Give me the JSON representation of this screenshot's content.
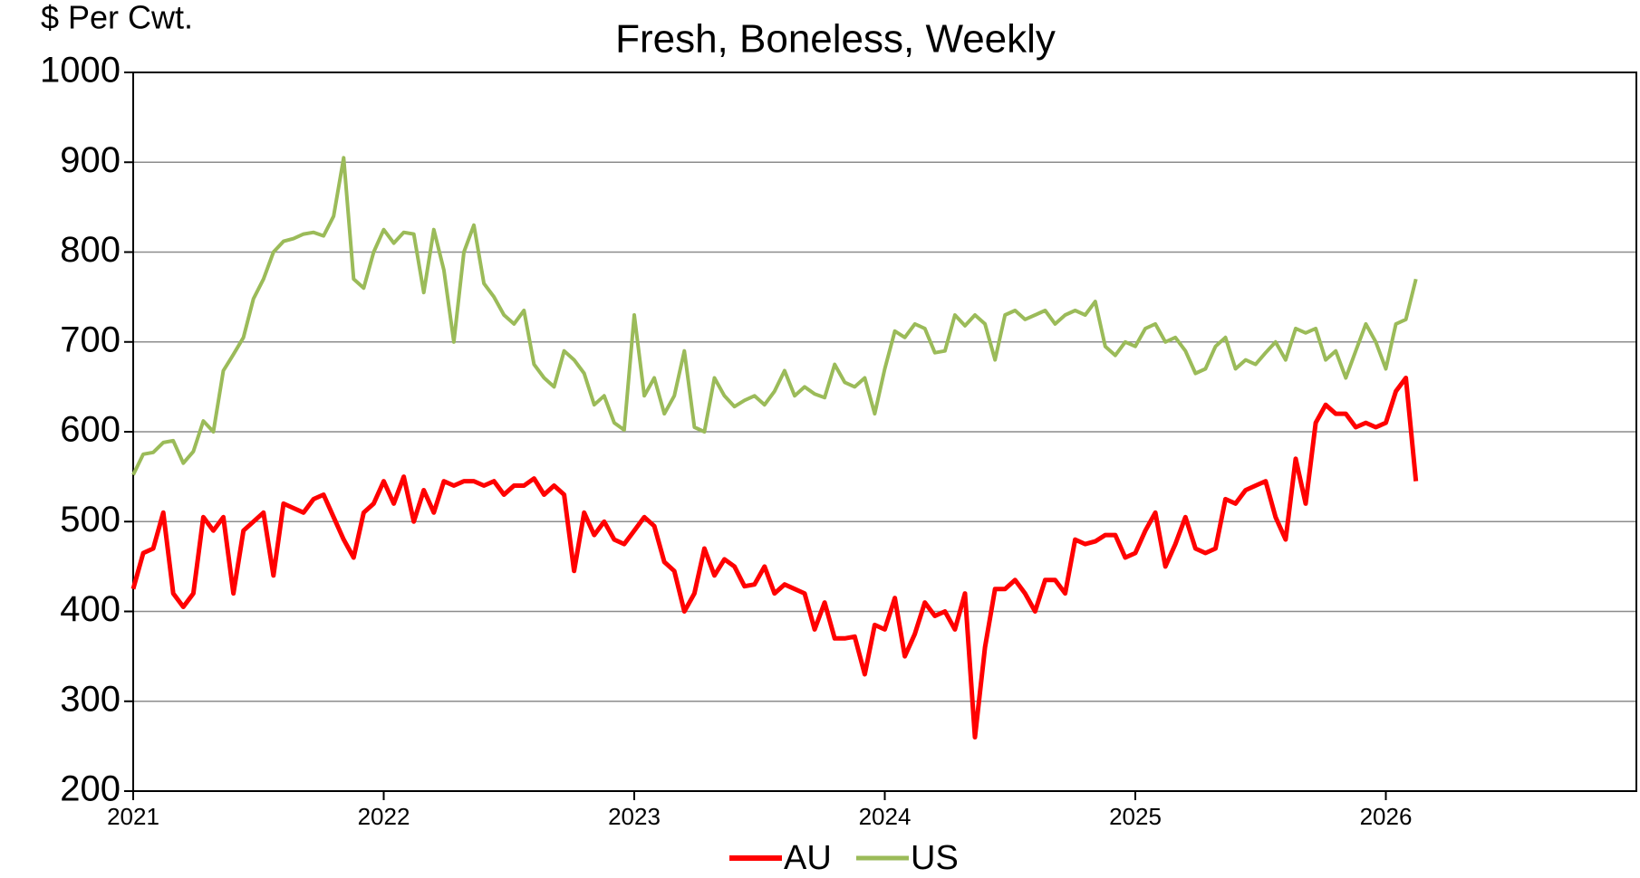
{
  "chart_data": {
    "type": "line",
    "title": "Fresh, Boneless, Weekly",
    "y_label": "$ Per Cwt.",
    "x": [
      2021.0,
      2021.04,
      2021.08,
      2021.12,
      2021.16,
      2021.2,
      2021.24,
      2021.28,
      2021.32,
      2021.36,
      2021.4,
      2021.44,
      2021.48,
      2021.52,
      2021.56,
      2021.6,
      2021.64,
      2021.68,
      2021.72,
      2021.76,
      2021.8,
      2021.84,
      2021.88,
      2021.92,
      2021.96,
      2022.0,
      2022.04,
      2022.08,
      2022.12,
      2022.16,
      2022.2,
      2022.24,
      2022.28,
      2022.32,
      2022.36,
      2022.4,
      2022.44,
      2022.48,
      2022.52,
      2022.56,
      2022.6,
      2022.64,
      2022.68,
      2022.72,
      2022.76,
      2022.8,
      2022.84,
      2022.88,
      2022.92,
      2022.96,
      2023.0,
      2023.04,
      2023.08,
      2023.12,
      2023.16,
      2023.2,
      2023.24,
      2023.28,
      2023.32,
      2023.36,
      2023.4,
      2023.44,
      2023.48,
      2023.52,
      2023.56,
      2023.6,
      2023.64,
      2023.68,
      2023.72,
      2023.76,
      2023.8,
      2023.84,
      2023.88,
      2023.92,
      2023.96,
      2024.0,
      2024.04,
      2024.08,
      2024.12,
      2024.16,
      2024.2,
      2024.24,
      2024.28,
      2024.32,
      2024.36,
      2024.4,
      2024.44,
      2024.48,
      2024.52,
      2024.56,
      2024.6,
      2024.64,
      2024.68,
      2024.72,
      2024.76,
      2024.8,
      2024.84,
      2024.88,
      2024.92,
      2024.96,
      2025.0,
      2025.04,
      2025.08,
      2025.12,
      2025.16,
      2025.2,
      2025.24,
      2025.28,
      2025.32,
      2025.36,
      2025.4,
      2025.44,
      2025.48,
      2025.52,
      2025.56,
      2025.6,
      2025.64,
      2025.68,
      2025.72,
      2025.76,
      2025.8,
      2025.84,
      2025.88,
      2025.92,
      2025.96,
      2026.0,
      2026.04,
      2026.08,
      2026.12
    ],
    "series": [
      {
        "name": "AU",
        "color": "#ff0000",
        "values": [
          425,
          465,
          470,
          510,
          420,
          405,
          420,
          505,
          490,
          505,
          420,
          490,
          500,
          510,
          440,
          520,
          515,
          510,
          525,
          530,
          505,
          480,
          460,
          510,
          520,
          545,
          520,
          550,
          500,
          535,
          510,
          545,
          540,
          545,
          545,
          540,
          545,
          530,
          540,
          540,
          548,
          530,
          540,
          530,
          445,
          510,
          485,
          500,
          480,
          475,
          490,
          505,
          495,
          455,
          445,
          400,
          420,
          470,
          440,
          458,
          450,
          428,
          430,
          450,
          420,
          430,
          425,
          420,
          380,
          410,
          370,
          370,
          372,
          330,
          385,
          380,
          415,
          350,
          375,
          410,
          395,
          400,
          380,
          420,
          260,
          360,
          425,
          425,
          435,
          420,
          400,
          435,
          435,
          420,
          480,
          475,
          478,
          485,
          485,
          460,
          465,
          490,
          510,
          450,
          475,
          505,
          470,
          465,
          470,
          525,
          520,
          535,
          540,
          545,
          505,
          480,
          570,
          520,
          610,
          630,
          620,
          620,
          605,
          610,
          605,
          610,
          645,
          660,
          545
        ]
      },
      {
        "name": "US",
        "color": "#9bbb59",
        "values": [
          552,
          575,
          577,
          588,
          590,
          565,
          578,
          612,
          600,
          668,
          686,
          705,
          748,
          770,
          800,
          812,
          815,
          820,
          822,
          818,
          840,
          905,
          770,
          760,
          800,
          825,
          810,
          822,
          820,
          755,
          825,
          780,
          700,
          800,
          830,
          765,
          750,
          730,
          720,
          735,
          675,
          660,
          650,
          690,
          680,
          665,
          630,
          640,
          610,
          602,
          730,
          640,
          660,
          620,
          640,
          690,
          605,
          600,
          660,
          640,
          628,
          635,
          640,
          630,
          645,
          668,
          640,
          650,
          642,
          638,
          675,
          655,
          650,
          660,
          620,
          670,
          712,
          705,
          720,
          715,
          688,
          690,
          730,
          718,
          730,
          720,
          680,
          730,
          735,
          725,
          730,
          735,
          720,
          730,
          735,
          730,
          745,
          695,
          685,
          700,
          695,
          715,
          720,
          700,
          705,
          690,
          665,
          670,
          695,
          705,
          670,
          680,
          675,
          688,
          700,
          680,
          715,
          710,
          715,
          680,
          690,
          660,
          690,
          720,
          700,
          670,
          720,
          725,
          770
        ]
      }
    ],
    "xlim": [
      2021,
      2027
    ],
    "xticks": [
      2021,
      2022,
      2023,
      2024,
      2025,
      2026
    ],
    "ylim": [
      200,
      1000
    ],
    "yticks": [
      200,
      300,
      400,
      500,
      600,
      700,
      800,
      900,
      1000
    ],
    "grid": true,
    "legend": "bottom"
  }
}
